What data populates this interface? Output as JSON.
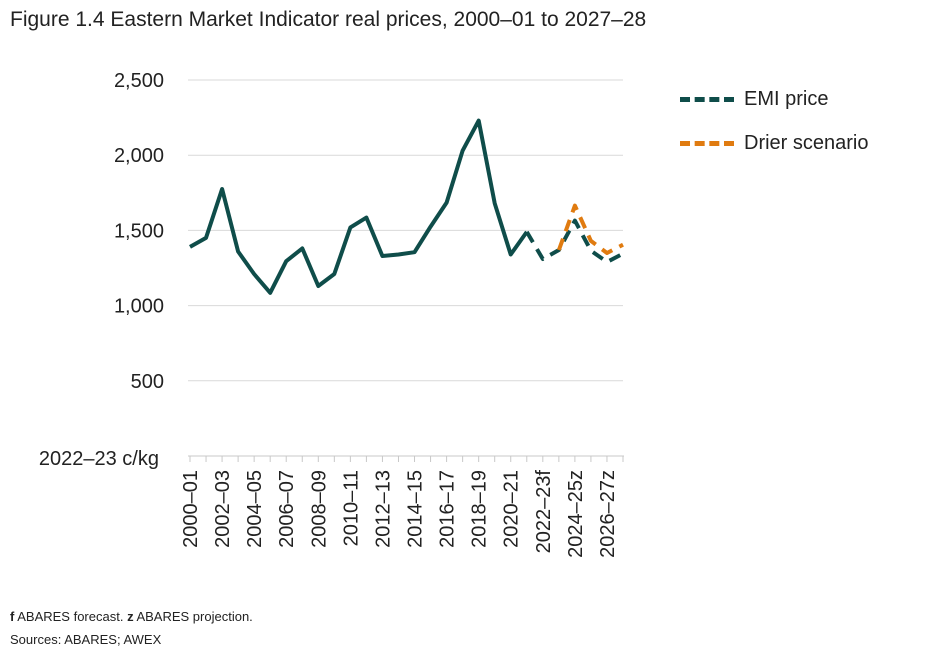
{
  "title": "Figure 1.4 Eastern Market Indicator real prices, 2000–01 to 2027–28",
  "footnote": {
    "f_marker": "f",
    "f_text": " ABARES forecast. ",
    "z_marker": "z",
    "z_text": " ABARES projection."
  },
  "sources": "Sources: ABARES; AWEX",
  "legend": [
    {
      "label": "EMI price",
      "color": "#0f4d4a"
    },
    {
      "label": "Drier scenario",
      "color": "#e07b10"
    }
  ],
  "chart_data": {
    "type": "line",
    "title": "Figure 1.4 Eastern Market Indicator real prices, 2000–01 to 2027–28",
    "ylabel": "2022–23 c/kg",
    "xlabel": "",
    "ylim": [
      0,
      2500
    ],
    "yticks": [
      500,
      1000,
      1500,
      2000,
      2500
    ],
    "ytick_labels": [
      "500",
      "1,000",
      "1,500",
      "2,000",
      "2,500"
    ],
    "grid": true,
    "legend_position": "top-right",
    "categories": [
      "2000–01",
      "2001–02",
      "2002–03",
      "2003–04",
      "2004–05",
      "2005–06",
      "2006–07",
      "2007–08",
      "2008–09",
      "2009–10",
      "2010–11",
      "2011–12",
      "2012–13",
      "2013–14",
      "2014–15",
      "2015–16",
      "2016–17",
      "2017–18",
      "2018–19",
      "2019–20",
      "2020–21",
      "2021–22",
      "2022–23f",
      "2023–24z",
      "2024–25z",
      "2025–26z",
      "2026–27z",
      "2027–28z"
    ],
    "xtick_labels": [
      "2000–01",
      "2002–03",
      "2004–05",
      "2006–07",
      "2008–09",
      "2010–11",
      "2012–13",
      "2014–15",
      "2016–17",
      "2018–19",
      "2020–21",
      "2022–23f",
      "2024–25z",
      "2026–27z"
    ],
    "series": [
      {
        "name": "EMI price",
        "color": "#0f4d4a",
        "style": "solid",
        "values": [
          1390,
          1450,
          1775,
          1360,
          1210,
          1085,
          1295,
          1380,
          1130,
          1210,
          1520,
          1585,
          1330,
          1340,
          1355,
          1525,
          1685,
          2030,
          2230,
          1680,
          1340,
          1490,
          null,
          null,
          null,
          null,
          null,
          null
        ]
      },
      {
        "name": "EMI price",
        "color": "#0f4d4a",
        "style": "dashed",
        "values": [
          null,
          null,
          null,
          null,
          null,
          null,
          null,
          null,
          null,
          null,
          null,
          null,
          null,
          null,
          null,
          null,
          null,
          null,
          null,
          null,
          null,
          1490,
          1310,
          1370,
          1565,
          1365,
          1290,
          1345
        ]
      },
      {
        "name": "Drier scenario",
        "color": "#e07b10",
        "style": "dashed",
        "values": [
          null,
          null,
          null,
          null,
          null,
          null,
          null,
          null,
          null,
          null,
          null,
          null,
          null,
          null,
          null,
          null,
          null,
          null,
          null,
          null,
          null,
          null,
          null,
          1370,
          1665,
          1430,
          1350,
          1405
        ]
      }
    ]
  }
}
